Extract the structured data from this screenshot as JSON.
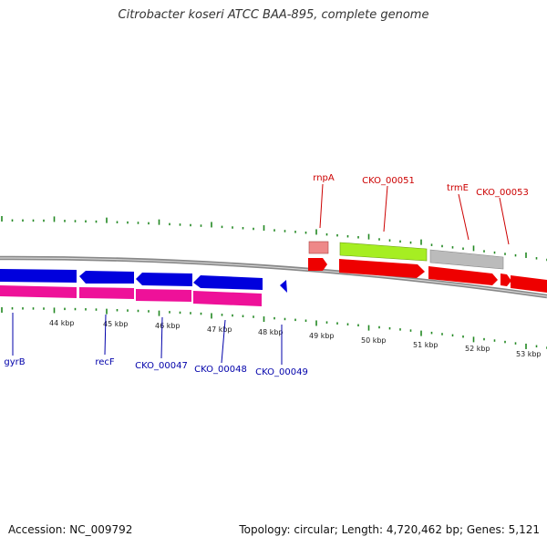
{
  "title": "Citrobacter koseri ATCC BAA-895, complete genome",
  "footer": {
    "accession": "Accession: NC_009792",
    "summary": "Topology: circular; Length: 4,720,462 bp; Genes: 5,121"
  },
  "colors": {
    "forward_cds": "#ee0000",
    "forward_light": "#ee8888",
    "forward_green": "#a6ee22",
    "forward_gray": "#bbbbbb",
    "reverse_cds": "#0000dd",
    "reverse_pink": "#ee1199",
    "tick_green": "#228822",
    "label_red": "#cc0000",
    "label_blue": "#0000aa",
    "backbone": "#888888"
  },
  "ruler": [
    "44 kbp",
    "45 kbp",
    "46 kbp",
    "47 kbp",
    "48 kbp",
    "49 kbp",
    "50 kbp",
    "51 kbp",
    "52 kbp",
    "53 kbp"
  ],
  "forward_labels": [
    "rnpA",
    "CKO_00051",
    "trmE",
    "CKO_00053"
  ],
  "reverse_labels": [
    "gyrB",
    "recF",
    "CKO_00047",
    "CKO_00048",
    "CKO_00049"
  ]
}
